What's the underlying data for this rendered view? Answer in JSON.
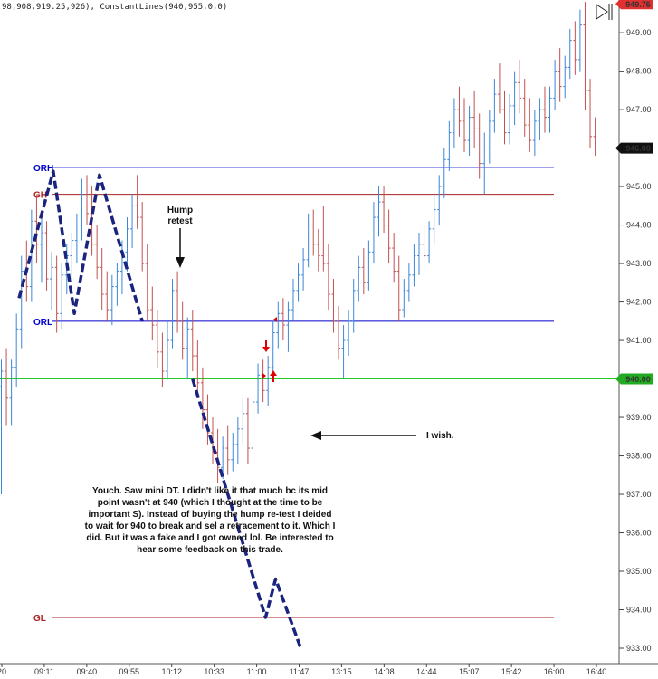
{
  "header": {
    "indicator_text": "98,908,919.25,926), ConstantLines(940,955,0,0)"
  },
  "chart_data": {
    "type": "bar",
    "title": "",
    "ylim": [
      932.6,
      949.85
    ],
    "yticks": [
      933,
      934,
      935,
      936,
      937,
      938,
      939,
      940,
      941,
      942,
      943,
      944,
      945,
      946,
      947,
      948,
      949
    ],
    "ytick_labels": [
      "933.00",
      "934.00",
      "935.00",
      "936.00",
      "937.00",
      "938.00",
      "939.00",
      "940.00",
      "941.00",
      "942.00",
      "943.00",
      "944.00",
      "945.00",
      "946.00",
      "947.00",
      "948.00",
      "949.00"
    ],
    "xtick_labels": [
      "20",
      "09:11",
      "09:40",
      "09:55",
      "10:12",
      "10:33",
      "11:00",
      "11:47",
      "13:15",
      "14:08",
      "14:44",
      "15:07",
      "15:42",
      "16:00",
      "16:40"
    ],
    "price_markers": [
      {
        "label": "949.75",
        "value": 949.75,
        "bg": "#e03030",
        "fg": "#ffffff"
      },
      {
        "label": "946.00",
        "value": 946.0,
        "bg": "#111111",
        "fg": "#ffffff"
      },
      {
        "label": "940.00",
        "value": 940.0,
        "bg": "#22aa22",
        "fg": "#ffffff"
      }
    ],
    "levels": [
      {
        "label": "ORH",
        "value": 945.5,
        "color": "#0000cc"
      },
      {
        "label": "GH",
        "value": 944.8,
        "color": "#aa2222"
      },
      {
        "label": "ORL",
        "value": 941.5,
        "color": "#0000cc"
      },
      {
        "label": "GL",
        "value": 933.8,
        "color": "#aa2222"
      }
    ],
    "constant_line": {
      "value": 940.0,
      "color": "#22cc22"
    },
    "series": [
      {
        "open": 939.8,
        "high": 940.5,
        "low": 937.0,
        "close": 940.2
      },
      {
        "open": 940.2,
        "high": 940.8,
        "low": 938.8,
        "close": 939.5
      },
      {
        "open": 939.5,
        "high": 940.5,
        "low": 938.8,
        "close": 940.3
      },
      {
        "open": 940.3,
        "high": 941.7,
        "low": 939.8,
        "close": 941.3
      },
      {
        "open": 941.3,
        "high": 943.2,
        "low": 940.8,
        "close": 942.8
      },
      {
        "open": 942.8,
        "high": 943.6,
        "low": 942.0,
        "close": 942.4
      },
      {
        "open": 942.4,
        "high": 944.4,
        "low": 942.0,
        "close": 944.1
      },
      {
        "open": 944.1,
        "high": 944.8,
        "low": 943.0,
        "close": 943.5
      },
      {
        "open": 943.5,
        "high": 944.2,
        "low": 942.5,
        "close": 943.8
      },
      {
        "open": 943.8,
        "high": 944.1,
        "low": 942.3,
        "close": 942.6
      },
      {
        "open": 942.6,
        "high": 943.3,
        "low": 941.8,
        "close": 942.9
      },
      {
        "open": 942.9,
        "high": 943.2,
        "low": 941.2,
        "close": 941.7
      },
      {
        "open": 941.7,
        "high": 943.0,
        "low": 941.3,
        "close": 942.7
      },
      {
        "open": 942.7,
        "high": 943.5,
        "low": 942.2,
        "close": 943.2
      },
      {
        "open": 943.2,
        "high": 943.8,
        "low": 942.6,
        "close": 943.6
      },
      {
        "open": 943.6,
        "high": 944.3,
        "low": 943.0,
        "close": 944.0
      },
      {
        "open": 944.0,
        "high": 945.2,
        "low": 943.6,
        "close": 944.8
      },
      {
        "open": 944.8,
        "high": 945.3,
        "low": 944.0,
        "close": 944.3
      },
      {
        "open": 944.3,
        "high": 945.0,
        "low": 943.2,
        "close": 943.5
      },
      {
        "open": 943.5,
        "high": 944.0,
        "low": 942.6,
        "close": 942.9
      },
      {
        "open": 942.9,
        "high": 943.4,
        "low": 941.8,
        "close": 942.2
      },
      {
        "open": 942.2,
        "high": 942.8,
        "low": 941.5,
        "close": 941.8
      },
      {
        "open": 941.8,
        "high": 942.7,
        "low": 941.4,
        "close": 942.4
      },
      {
        "open": 942.4,
        "high": 943.0,
        "low": 941.9,
        "close": 942.8
      },
      {
        "open": 942.8,
        "high": 943.6,
        "low": 942.2,
        "close": 943.3
      },
      {
        "open": 943.3,
        "high": 944.2,
        "low": 942.8,
        "close": 943.9
      },
      {
        "open": 943.9,
        "high": 944.8,
        "low": 943.4,
        "close": 944.5
      },
      {
        "open": 944.5,
        "high": 945.3,
        "low": 943.9,
        "close": 944.2
      },
      {
        "open": 944.2,
        "high": 944.6,
        "low": 942.8,
        "close": 943.0
      },
      {
        "open": 943.0,
        "high": 943.5,
        "low": 941.5,
        "close": 941.8
      },
      {
        "open": 941.8,
        "high": 942.4,
        "low": 941.0,
        "close": 941.4
      },
      {
        "open": 941.4,
        "high": 941.8,
        "low": 940.3,
        "close": 940.7
      },
      {
        "open": 940.7,
        "high": 941.2,
        "low": 939.8,
        "close": 940.2
      },
      {
        "open": 940.2,
        "high": 941.5,
        "low": 940.0,
        "close": 941.0
      },
      {
        "open": 941.0,
        "high": 942.6,
        "low": 940.8,
        "close": 942.3
      },
      {
        "open": 942.3,
        "high": 942.8,
        "low": 941.2,
        "close": 941.5
      },
      {
        "open": 941.5,
        "high": 942.0,
        "low": 940.5,
        "close": 940.8
      },
      {
        "open": 940.8,
        "high": 941.6,
        "low": 940.0,
        "close": 941.3
      },
      {
        "open": 941.3,
        "high": 941.8,
        "low": 940.2,
        "close": 940.6
      },
      {
        "open": 940.6,
        "high": 941.0,
        "low": 939.6,
        "close": 939.9
      },
      {
        "open": 939.9,
        "high": 940.3,
        "low": 938.7,
        "close": 939.2
      },
      {
        "open": 939.2,
        "high": 939.6,
        "low": 938.3,
        "close": 938.6
      },
      {
        "open": 938.6,
        "high": 939.0,
        "low": 937.8,
        "close": 938.1
      },
      {
        "open": 938.1,
        "high": 938.7,
        "low": 937.3,
        "close": 937.7
      },
      {
        "open": 937.7,
        "high": 938.5,
        "low": 937.4,
        "close": 938.2
      },
      {
        "open": 938.2,
        "high": 938.8,
        "low": 937.5,
        "close": 937.9
      },
      {
        "open": 937.9,
        "high": 938.6,
        "low": 937.6,
        "close": 938.3
      },
      {
        "open": 938.3,
        "high": 939.0,
        "low": 937.8,
        "close": 938.7
      },
      {
        "open": 938.7,
        "high": 939.5,
        "low": 938.3,
        "close": 939.1
      },
      {
        "open": 939.1,
        "high": 939.5,
        "low": 937.8,
        "close": 938.2
      },
      {
        "open": 938.2,
        "high": 939.8,
        "low": 938.0,
        "close": 939.4
      },
      {
        "open": 939.4,
        "high": 940.4,
        "low": 939.1,
        "close": 940.1
      },
      {
        "open": 940.1,
        "high": 940.5,
        "low": 939.4,
        "close": 939.7
      },
      {
        "open": 939.7,
        "high": 940.6,
        "low": 939.3,
        "close": 940.3
      },
      {
        "open": 940.3,
        "high": 941.5,
        "low": 940.1,
        "close": 941.2
      },
      {
        "open": 941.2,
        "high": 942.0,
        "low": 940.8,
        "close": 941.7
      },
      {
        "open": 941.7,
        "high": 942.1,
        "low": 941.0,
        "close": 941.4
      },
      {
        "open": 941.4,
        "high": 942.0,
        "low": 940.7,
        "close": 941.8
      },
      {
        "open": 941.8,
        "high": 942.6,
        "low": 941.5,
        "close": 942.3
      },
      {
        "open": 942.3,
        "high": 943.0,
        "low": 942.0,
        "close": 942.7
      },
      {
        "open": 942.7,
        "high": 943.4,
        "low": 942.3,
        "close": 943.1
      },
      {
        "open": 943.1,
        "high": 944.3,
        "low": 942.9,
        "close": 944.0
      },
      {
        "open": 944.0,
        "high": 944.4,
        "low": 943.2,
        "close": 943.5
      },
      {
        "open": 943.5,
        "high": 943.9,
        "low": 942.8,
        "close": 943.2
      },
      {
        "open": 943.2,
        "high": 944.5,
        "low": 942.8,
        "close": 943.0
      },
      {
        "open": 943.0,
        "high": 943.5,
        "low": 941.8,
        "close": 942.2
      },
      {
        "open": 942.2,
        "high": 942.6,
        "low": 941.2,
        "close": 941.5
      },
      {
        "open": 941.5,
        "high": 941.9,
        "low": 940.5,
        "close": 940.8
      },
      {
        "open": 940.8,
        "high": 941.4,
        "low": 940.0,
        "close": 941.0
      },
      {
        "open": 941.0,
        "high": 941.8,
        "low": 940.6,
        "close": 941.5
      },
      {
        "open": 941.5,
        "high": 942.6,
        "low": 941.2,
        "close": 942.3
      },
      {
        "open": 942.3,
        "high": 943.2,
        "low": 942.0,
        "close": 942.9
      },
      {
        "open": 942.9,
        "high": 943.4,
        "low": 942.2,
        "close": 942.5
      },
      {
        "open": 942.5,
        "high": 943.6,
        "low": 942.3,
        "close": 943.3
      },
      {
        "open": 943.3,
        "high": 944.6,
        "low": 943.0,
        "close": 944.2
      },
      {
        "open": 944.2,
        "high": 945.0,
        "low": 943.7,
        "close": 944.6
      },
      {
        "open": 944.6,
        "high": 945.0,
        "low": 943.8,
        "close": 944.0
      },
      {
        "open": 944.0,
        "high": 944.4,
        "low": 943.0,
        "close": 943.4
      },
      {
        "open": 943.4,
        "high": 943.8,
        "low": 942.5,
        "close": 942.8
      },
      {
        "open": 942.8,
        "high": 943.2,
        "low": 941.5,
        "close": 941.8
      },
      {
        "open": 941.8,
        "high": 942.6,
        "low": 941.6,
        "close": 942.3
      },
      {
        "open": 942.3,
        "high": 943.0,
        "low": 942.0,
        "close": 942.7
      },
      {
        "open": 942.7,
        "high": 943.5,
        "low": 942.4,
        "close": 943.2
      },
      {
        "open": 943.2,
        "high": 943.8,
        "low": 942.7,
        "close": 943.5
      },
      {
        "open": 943.5,
        "high": 944.0,
        "low": 942.9,
        "close": 943.2
      },
      {
        "open": 943.2,
        "high": 944.1,
        "low": 943.0,
        "close": 943.9
      },
      {
        "open": 943.9,
        "high": 944.8,
        "low": 943.5,
        "close": 944.4
      },
      {
        "open": 944.4,
        "high": 945.3,
        "low": 944.0,
        "close": 945.0
      },
      {
        "open": 945.0,
        "high": 946.0,
        "low": 944.7,
        "close": 945.7
      },
      {
        "open": 945.7,
        "high": 946.7,
        "low": 945.4,
        "close": 946.4
      },
      {
        "open": 946.4,
        "high": 947.3,
        "low": 946.0,
        "close": 947.0
      },
      {
        "open": 947.0,
        "high": 947.6,
        "low": 946.3,
        "close": 946.7
      },
      {
        "open": 946.7,
        "high": 947.3,
        "low": 945.9,
        "close": 946.2
      },
      {
        "open": 946.2,
        "high": 947.1,
        "low": 945.8,
        "close": 946.8
      },
      {
        "open": 946.8,
        "high": 947.5,
        "low": 946.0,
        "close": 946.5
      },
      {
        "open": 946.5,
        "high": 946.9,
        "low": 945.2,
        "close": 945.6
      },
      {
        "open": 945.6,
        "high": 946.4,
        "low": 944.8,
        "close": 946.0
      },
      {
        "open": 946.0,
        "high": 947.0,
        "low": 945.6,
        "close": 946.7
      },
      {
        "open": 946.7,
        "high": 947.8,
        "low": 946.4,
        "close": 947.4
      },
      {
        "open": 947.4,
        "high": 948.2,
        "low": 946.9,
        "close": 947.0
      },
      {
        "open": 947.0,
        "high": 947.5,
        "low": 946.1,
        "close": 946.4
      },
      {
        "open": 946.4,
        "high": 947.4,
        "low": 946.1,
        "close": 947.1
      },
      {
        "open": 947.1,
        "high": 948.0,
        "low": 946.6,
        "close": 947.7
      },
      {
        "open": 947.7,
        "high": 948.3,
        "low": 946.9,
        "close": 947.3
      },
      {
        "open": 947.3,
        "high": 947.8,
        "low": 946.3,
        "close": 946.6
      },
      {
        "open": 946.6,
        "high": 947.3,
        "low": 945.9,
        "close": 946.2
      },
      {
        "open": 946.2,
        "high": 947.0,
        "low": 945.8,
        "close": 946.7
      },
      {
        "open": 946.7,
        "high": 947.3,
        "low": 946.2,
        "close": 947.0
      },
      {
        "open": 947.0,
        "high": 947.6,
        "low": 946.4,
        "close": 946.8
      },
      {
        "open": 946.8,
        "high": 947.6,
        "low": 946.4,
        "close": 947.3
      },
      {
        "open": 947.3,
        "high": 948.3,
        "low": 947.0,
        "close": 948.0
      },
      {
        "open": 948.0,
        "high": 948.6,
        "low": 947.2,
        "close": 947.6
      },
      {
        "open": 947.6,
        "high": 948.4,
        "low": 947.3,
        "close": 948.1
      },
      {
        "open": 948.1,
        "high": 949.1,
        "low": 947.8,
        "close": 948.8
      },
      {
        "open": 948.8,
        "high": 949.3,
        "low": 947.9,
        "close": 948.3
      },
      {
        "open": 948.3,
        "high": 949.6,
        "low": 948.0,
        "close": 949.2
      },
      {
        "open": 949.2,
        "high": 949.8,
        "low": 947.0,
        "close": 947.5
      },
      {
        "open": 947.5,
        "high": 947.8,
        "low": 946.0,
        "close": 946.3
      },
      {
        "open": 946.3,
        "high": 946.8,
        "low": 945.8,
        "close": 946.0
      }
    ],
    "pattern_path": [
      {
        "bar": 3.5,
        "price": 942.1
      },
      {
        "bar": 10.3,
        "price": 945.4
      },
      {
        "bar": 14.5,
        "price": 941.7
      },
      {
        "bar": 19.5,
        "price": 945.3
      },
      {
        "bar": 28.0,
        "price": 941.5
      }
    ],
    "wish_path": [
      {
        "bar": 38.0,
        "price": 940.0
      },
      {
        "bar": 52.5,
        "price": 933.8
      },
      {
        "bar": 54.5,
        "price": 934.8
      },
      {
        "bar": 59.5,
        "price": 933.0
      }
    ]
  },
  "annotations": {
    "hump_retest": [
      "Hump",
      "retest"
    ],
    "i_wish": "I wish.",
    "comment": [
      "Youch. Saw mini DT. I didn't like it  that much bc its mid",
      "point wasn't at 940 (which I thought at the time to be",
      "important S). Instead of buying the hump re-test I deided",
      "to wait for 940 to break and sel a retracement to it. Which I",
      "did. But it was a fake and I got owned lol. Be interested to",
      "hear some feedback on this trade."
    ]
  },
  "colors": {
    "up_bar": "#3a86d8",
    "down_bar": "#c25050",
    "pattern": "#1a237e",
    "arrow": "#111111",
    "marker_red": "#e00000"
  }
}
